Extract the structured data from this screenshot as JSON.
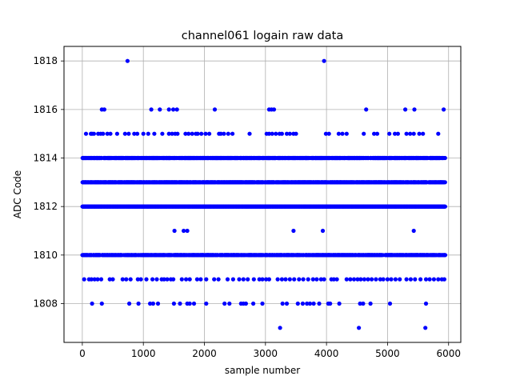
{
  "chart_data": {
    "type": "scatter",
    "title": "channel061 logain raw data",
    "xlabel": "sample number",
    "ylabel": "ADC Code",
    "xlim": [
      -300,
      6200
    ],
    "ylim": [
      1806.4,
      1818.6
    ],
    "x_ticks": [
      0,
      1000,
      2000,
      3000,
      4000,
      5000,
      6000
    ],
    "y_ticks": [
      1808,
      1810,
      1812,
      1814,
      1816,
      1818
    ],
    "grid": true,
    "marker_color": "#0000ff",
    "sample_count": 6000,
    "levels": [
      1807,
      1808,
      1809,
      1810,
      1811,
      1812,
      1813,
      1814,
      1815,
      1816,
      1817,
      1818
    ],
    "points": {
      "1818": [
        740,
        3960
      ],
      "1816": [
        320,
        360,
        1130,
        1270,
        1420,
        1490,
        1550,
        2170,
        3060,
        3100,
        3140,
        4650,
        5290,
        5440,
        5920
      ],
      "1815": [
        60,
        140,
        160,
        190,
        260,
        300,
        340,
        410,
        460,
        570,
        700,
        760,
        850,
        900,
        1000,
        1080,
        1180,
        1310,
        1420,
        1470,
        1520,
        1560,
        1690,
        1740,
        1800,
        1860,
        1890,
        1950,
        2020,
        2080,
        2240,
        2270,
        2320,
        2390,
        2460,
        2740,
        3020,
        3060,
        3110,
        3170,
        3230,
        3270,
        3350,
        3400,
        3460,
        3500,
        3990,
        4040,
        4200,
        4260,
        4330,
        4610,
        4780,
        4830,
        5030,
        5120,
        5170,
        5310,
        5370,
        5430,
        5520,
        5580,
        5830
      ],
      "1811": [
        1510,
        1660,
        1720,
        3460,
        3940,
        5430
      ],
      "1809": [
        30,
        110,
        150,
        200,
        250,
        310,
        450,
        500,
        660,
        720,
        790,
        910,
        960,
        1050,
        1150,
        1220,
        1300,
        1340,
        1390,
        1450,
        1490,
        1630,
        1700,
        1760,
        1880,
        1940,
        2030,
        2160,
        2230,
        2380,
        2470,
        2570,
        2640,
        2710,
        2810,
        2900,
        2950,
        3010,
        3060,
        3200,
        3270,
        3330,
        3400,
        3470,
        3550,
        3620,
        3700,
        3780,
        3840,
        3910,
        3960,
        4080,
        4120,
        4170,
        4330,
        4390,
        4450,
        4510,
        4560,
        4620,
        4680,
        4740,
        4810,
        4880,
        4930,
        5000,
        5060,
        5130,
        5200,
        5310,
        5380,
        5450,
        5540,
        5630,
        5690,
        5760,
        5830,
        5890,
        5930
      ],
      "1808": [
        160,
        320,
        770,
        920,
        1110,
        1160,
        1240,
        1500,
        1600,
        1720,
        1760,
        1830,
        2030,
        2330,
        2410,
        2600,
        2640,
        2680,
        2800,
        2950,
        3280,
        3350,
        3530,
        3610,
        3680,
        3730,
        3790,
        3880,
        4030,
        4060,
        4210,
        4550,
        4600,
        4720,
        5040,
        5630
      ],
      "1807": [
        3240,
        4530,
        5620
      ]
    },
    "dense_levels": [
      1814,
      1813,
      1812,
      1810
    ]
  }
}
